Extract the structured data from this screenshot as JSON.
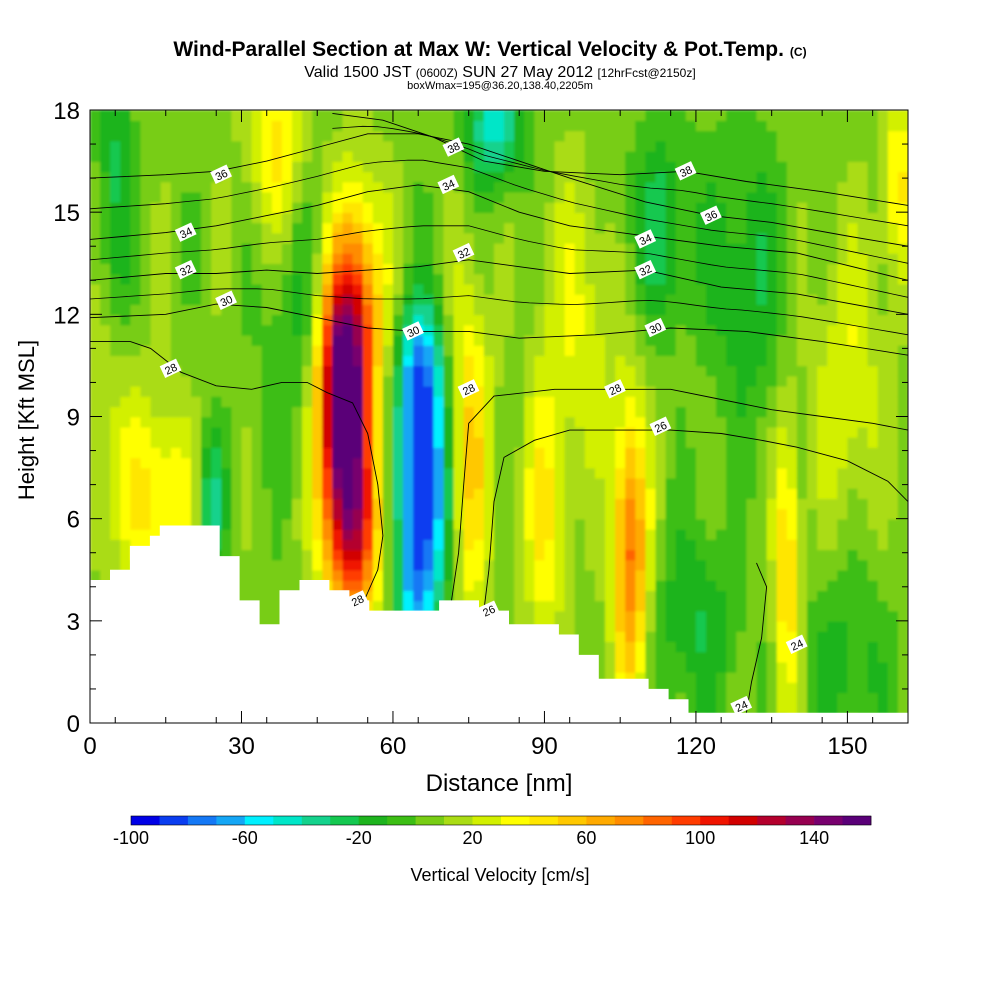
{
  "chart_data": {
    "type": "heatmap",
    "title": "Wind-Parallel Section at Max W: Vertical Velocity & Pot.Temp.",
    "title_mark": "(C)",
    "subtitle_valid": "Valid 1500 JST",
    "subtitle_z": "(0600Z)",
    "subtitle_date": "SUN 27 May 2012",
    "subtitle_fcst": "[12hrFcst@2150z]",
    "subtitle_box": "boxWmax=195@36.20,138.40,2205m",
    "xlabel": "Distance [nm]",
    "ylabel": "Height [Kft MSL]",
    "xlim": [
      0,
      162
    ],
    "ylim": [
      0,
      18
    ],
    "x_ticks": [
      0,
      30,
      60,
      90,
      120,
      150
    ],
    "y_ticks": [
      0,
      3,
      6,
      9,
      12,
      15,
      18
    ],
    "grid": false,
    "colorbar": {
      "label": "Vertical Velocity [cm/s]",
      "min": -100,
      "max": 160,
      "step": 10,
      "tick_labels": [
        -100,
        -60,
        -20,
        20,
        60,
        100,
        140
      ],
      "colors": [
        "#0000e6",
        "#0a3df0",
        "#1478f5",
        "#14a6f5",
        "#00f0ff",
        "#00e6c8",
        "#14d28c",
        "#14c850",
        "#1eb41e",
        "#3cbe14",
        "#78cd14",
        "#aadc14",
        "#d2f000",
        "#ffff00",
        "#ffe600",
        "#ffc800",
        "#ffaa00",
        "#ff8c00",
        "#ff6400",
        "#ff3c00",
        "#f01400",
        "#d20000",
        "#b4002d",
        "#960050",
        "#78006e",
        "#5a0078"
      ]
    },
    "velocity_cells": [
      {
        "x": 50,
        "z": 9.5,
        "w": 155,
        "sx": 3.5,
        "sz": 2.5
      },
      {
        "x": 53,
        "z": 12.5,
        "w": 60,
        "sx": 4,
        "sz": 2.5
      },
      {
        "x": 52,
        "z": 5.5,
        "w": 90,
        "sx": 4,
        "sz": 2
      },
      {
        "x": 66,
        "z": 7,
        "w": -105,
        "sx": 3.5,
        "sz": 2.8
      },
      {
        "x": 65,
        "z": 10.5,
        "w": -40,
        "sx": 3,
        "sz": 1.3
      },
      {
        "x": 64,
        "z": 3.8,
        "w": -30,
        "sx": 2.5,
        "sz": 1
      },
      {
        "x": 75,
        "z": 8,
        "w": 50,
        "sx": 3,
        "sz": 3.5
      },
      {
        "x": 107,
        "z": 5,
        "w": 80,
        "sx": 2.5,
        "sz": 3
      },
      {
        "x": 138,
        "z": 4.5,
        "w": 50,
        "sx": 1.8,
        "sz": 3
      },
      {
        "x": 80,
        "z": 17.5,
        "w": -50,
        "sx": 4,
        "sz": 1.2
      },
      {
        "x": 5,
        "z": 15,
        "w": -30,
        "sx": 2.5,
        "sz": 4
      },
      {
        "x": 24,
        "z": 6.5,
        "w": -40,
        "sx": 2,
        "sz": 1.5
      },
      {
        "x": 113,
        "z": 14.5,
        "w": -30,
        "sx": 5,
        "sz": 2
      },
      {
        "x": 130,
        "z": 13,
        "w": -25,
        "sx": 5,
        "sz": 3
      },
      {
        "x": 14,
        "z": 6.5,
        "w": 40,
        "sx": 5,
        "sz": 2
      },
      {
        "x": 4,
        "z": 9,
        "w": 25,
        "sx": 4,
        "sz": 3
      },
      {
        "x": 37,
        "z": 17,
        "w": 40,
        "sx": 4,
        "sz": 2
      },
      {
        "x": 42,
        "z": 12,
        "w": -20,
        "sx": 5,
        "sz": 3
      },
      {
        "x": 90,
        "z": 6,
        "w": 35,
        "sx": 3,
        "sz": 3
      },
      {
        "x": 97,
        "z": 12,
        "w": 25,
        "sx": 5,
        "sz": 3
      },
      {
        "x": 150,
        "z": 10,
        "w": 25,
        "sx": 5,
        "sz": 3
      },
      {
        "x": 160,
        "z": 16,
        "w": 35,
        "sx": 2.5,
        "sz": 2
      },
      {
        "x": 120,
        "z": 3,
        "w": -25,
        "sx": 6,
        "sz": 2
      },
      {
        "x": 150,
        "z": 2,
        "w": -20,
        "sx": 6,
        "sz": 2
      }
    ],
    "terrain_top": [
      4.2,
      4.2,
      4.5,
      4.5,
      5.2,
      5.2,
      5.5,
      5.8,
      5.8,
      5.8,
      5.8,
      5.8,
      5.8,
      4.9,
      4.9,
      3.6,
      3.6,
      2.9,
      2.9,
      3.9,
      3.9,
      4.2,
      4.2,
      4.2,
      3.9,
      3.9,
      3.6,
      3.6,
      3.3,
      3.3,
      3.3,
      3.3,
      3.3,
      3.3,
      3.3,
      3.6,
      3.6,
      3.6,
      3.6,
      3.3,
      3.3,
      3.3,
      2.9,
      2.9,
      2.9,
      2.9,
      2.9,
      2.6,
      2.6,
      2.0,
      2.0,
      1.3,
      1.3,
      1.3,
      1.3,
      1.3,
      1.0,
      1.0,
      0.7,
      0.7,
      0.3,
      0.3,
      0.3,
      0.3,
      0.3,
      0.3,
      0.3,
      0.3,
      0.3,
      0.3,
      0.3,
      0.3,
      0.3,
      0.3,
      0.3,
      0.3,
      0.3,
      0.3,
      0.3,
      0.3,
      0.3,
      0.3
    ],
    "theta_contours": [
      {
        "level": 24,
        "label_at": [
          [
            140,
            2.3
          ],
          [
            129,
            0.5
          ]
        ],
        "points": [
          [
            130,
            0.3
          ],
          [
            131,
            1.2
          ],
          [
            133,
            2.5
          ],
          [
            134,
            4
          ],
          [
            132,
            4.7
          ]
        ]
      },
      {
        "level": 26,
        "label_at": [
          [
            79,
            3.3
          ],
          [
            113,
            8.7
          ]
        ],
        "points": [
          [
            78,
            3.3
          ],
          [
            79,
            4.5
          ],
          [
            80,
            6.5
          ],
          [
            82,
            7.8
          ],
          [
            88,
            8.3
          ],
          [
            95,
            8.6
          ],
          [
            105,
            8.6
          ],
          [
            115,
            8.6
          ],
          [
            125,
            8.5
          ],
          [
            133,
            8.3
          ],
          [
            140,
            8.1
          ],
          [
            150,
            7.7
          ],
          [
            158,
            7.1
          ],
          [
            162,
            6.5
          ]
        ]
      },
      {
        "level": 28,
        "label_at": [
          [
            53,
            3.6
          ],
          [
            75,
            9.8
          ],
          [
            104,
            9.8
          ],
          [
            16,
            10.4
          ]
        ],
        "points": [
          [
            0,
            11.2
          ],
          [
            8,
            11.2
          ],
          [
            12,
            11
          ],
          [
            18,
            10.3
          ],
          [
            25,
            9.9
          ],
          [
            32,
            9.8
          ],
          [
            38,
            10
          ],
          [
            43,
            10
          ],
          [
            47,
            9.7
          ],
          [
            52,
            9.4
          ],
          [
            55,
            8.5
          ],
          [
            57,
            7
          ],
          [
            58,
            5.5
          ],
          [
            57,
            4.5
          ],
          [
            54,
            3.5
          ]
        ]
      },
      {
        "level": 28,
        "label_at": [],
        "points": [
          [
            71,
            3
          ],
          [
            73,
            5
          ],
          [
            74,
            7
          ],
          [
            75,
            8.8
          ],
          [
            80,
            9.6
          ],
          [
            92,
            9.8
          ],
          [
            104,
            9.8
          ],
          [
            115,
            9.8
          ],
          [
            125,
            9.5
          ],
          [
            135,
            9.2
          ],
          [
            145,
            9
          ],
          [
            155,
            8.8
          ],
          [
            162,
            8.6
          ]
        ]
      },
      {
        "level": 30,
        "label_at": [
          [
            27,
            12.4
          ],
          [
            64,
            11.5
          ],
          [
            112,
            11.6
          ]
        ],
        "points": [
          [
            0,
            11.9
          ],
          [
            15,
            12
          ],
          [
            25,
            12.3
          ],
          [
            35,
            12.2
          ],
          [
            45,
            11.9
          ],
          [
            55,
            11.6
          ],
          [
            65,
            11.5
          ],
          [
            75,
            11.5
          ],
          [
            85,
            11.3
          ],
          [
            100,
            11.4
          ],
          [
            115,
            11.6
          ],
          [
            130,
            11.5
          ],
          [
            145,
            11.2
          ],
          [
            162,
            10.8
          ]
        ]
      },
      {
        "level": 32,
        "label_at": [
          [
            19,
            13.3
          ],
          [
            74,
            13.8
          ],
          [
            110,
            13.3
          ]
        ],
        "points": [
          [
            0,
            13
          ],
          [
            15,
            13.2
          ],
          [
            25,
            13.2
          ],
          [
            35,
            13.3
          ],
          [
            45,
            13.2
          ],
          [
            55,
            13.3
          ],
          [
            65,
            13.4
          ],
          [
            75,
            13.6
          ],
          [
            85,
            13.4
          ],
          [
            95,
            13.2
          ],
          [
            110,
            13.3
          ],
          [
            125,
            12.8
          ],
          [
            140,
            12.6
          ],
          [
            162,
            12
          ]
        ]
      },
      {
        "level": 34,
        "label_at": [
          [
            19,
            14.4
          ],
          [
            71,
            15.8
          ],
          [
            110,
            14.2
          ]
        ],
        "points": [
          [
            0,
            14.2
          ],
          [
            15,
            14.4
          ],
          [
            25,
            14.6
          ],
          [
            35,
            14.9
          ],
          [
            45,
            15.2
          ],
          [
            55,
            15.6
          ],
          [
            65,
            15.8
          ],
          [
            75,
            15.6
          ],
          [
            85,
            15
          ],
          [
            95,
            14.6
          ],
          [
            110,
            14.3
          ],
          [
            125,
            14
          ],
          [
            140,
            13.8
          ],
          [
            162,
            13
          ]
        ]
      },
      {
        "level": 36,
        "label_at": [
          [
            26,
            16.1
          ],
          [
            123,
            14.9
          ]
        ],
        "points": [
          [
            0,
            16
          ],
          [
            15,
            16.1
          ],
          [
            25,
            16.2
          ],
          [
            35,
            16.5
          ],
          [
            45,
            16.9
          ],
          [
            55,
            17.3
          ],
          [
            65,
            17.3
          ],
          [
            75,
            17
          ],
          [
            85,
            16.5
          ],
          [
            95,
            16
          ],
          [
            110,
            15.3
          ],
          [
            123,
            14.9
          ],
          [
            135,
            14.7
          ],
          [
            150,
            14.3
          ],
          [
            162,
            14
          ]
        ]
      },
      {
        "level": 38,
        "label_at": [
          [
            72,
            16.9
          ],
          [
            118,
            16.2
          ]
        ],
        "points": [
          [
            48,
            17.9
          ],
          [
            58,
            17.7
          ],
          [
            68,
            17.2
          ],
          [
            78,
            16.5
          ],
          [
            90,
            16.2
          ],
          [
            105,
            16.1
          ],
          [
            118,
            16.2
          ],
          [
            130,
            15.9
          ],
          [
            145,
            15.6
          ],
          [
            162,
            15.2
          ]
        ]
      }
    ]
  }
}
